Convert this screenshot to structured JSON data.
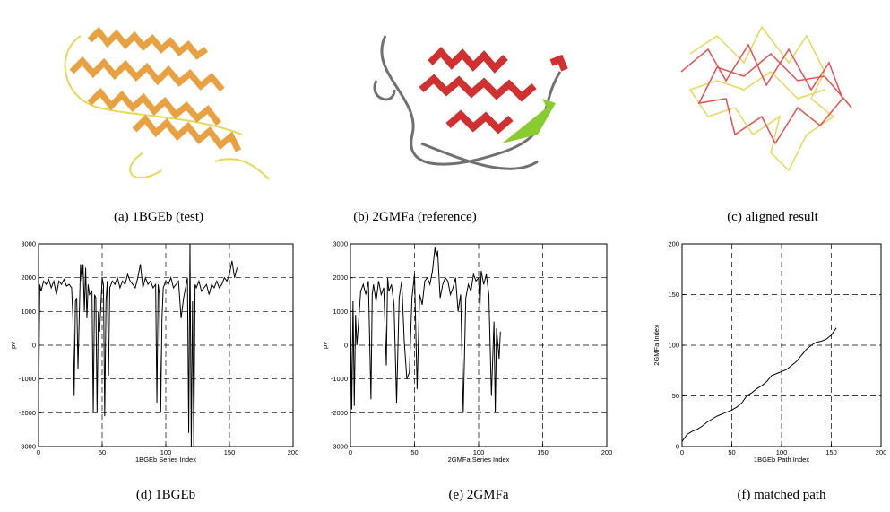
{
  "images": [
    {
      "caption": "(a) 1BGEb (test)"
    },
    {
      "caption": "(b) 2GMFa (reference)"
    },
    {
      "caption": "(c) aligned result"
    }
  ],
  "chart_data": [
    {
      "type": "line",
      "caption": "(d) 1BGEb",
      "x_label": "1BGEb Series Index",
      "y_label": "pv",
      "xlim": [
        0,
        200
      ],
      "xticks": [
        0,
        50,
        100,
        150,
        200
      ],
      "ylim": [
        -3000,
        3000
      ],
      "yticks": [
        -3000,
        -2000,
        -1000,
        0,
        1000,
        2000,
        3000
      ],
      "grid": true,
      "x": [
        0,
        1,
        2,
        4,
        6,
        8,
        10,
        12,
        14,
        16,
        18,
        20,
        22,
        24,
        26,
        27,
        28,
        29,
        30,
        31,
        33,
        34,
        35,
        36,
        37,
        38,
        39,
        40,
        42,
        43,
        44,
        45,
        46,
        47,
        48,
        50,
        51,
        52,
        53,
        54,
        55,
        56,
        58,
        60,
        62,
        64,
        66,
        68,
        70,
        72,
        74,
        76,
        78,
        80,
        82,
        84,
        86,
        88,
        90,
        92,
        93,
        94,
        95,
        96,
        97,
        98,
        100,
        102,
        104,
        106,
        108,
        110,
        112,
        114,
        116,
        117,
        118,
        119,
        120,
        121,
        122,
        123,
        124,
        126,
        128,
        130,
        132,
        134,
        136,
        138,
        140,
        142,
        144,
        146,
        148,
        150,
        152,
        154,
        156
      ],
      "series": [
        {
          "color": "#000000",
          "values": [
            -1900,
            1800,
            1600,
            1900,
            1800,
            1950,
            1700,
            1900,
            1500,
            1900,
            1800,
            1950,
            1750,
            1800,
            1700,
            800,
            -1500,
            1300,
            1400,
            -700,
            2400,
            1900,
            2400,
            1000,
            2300,
            800,
            1800,
            1500,
            1600,
            -2000,
            1500,
            1400,
            -2000,
            1000,
            400,
            2000,
            1800,
            -2100,
            1300,
            1900,
            -900,
            1700,
            1900,
            1800,
            2000,
            1700,
            1900,
            1800,
            2100,
            1900,
            1800,
            1700,
            2000,
            2400,
            1700,
            2000,
            1800,
            1900,
            1700,
            1800,
            -1700,
            1800,
            1500,
            -2000,
            800,
            1700,
            1900,
            1800,
            2000,
            1700,
            1800,
            1900,
            800,
            1400,
            1800,
            2000,
            -2600,
            3000,
            -3000,
            1300,
            -3000,
            1800,
            1700,
            1900,
            1600,
            1700,
            1800,
            1500,
            1800,
            1700,
            1900,
            1700,
            1800,
            2000,
            1900,
            2100,
            2500,
            2000,
            2300
          ]
        }
      ]
    },
    {
      "type": "line",
      "caption": "(e) 2GMFa",
      "x_label": "2GMFa Series Index",
      "y_label": "pv",
      "xlim": [
        0,
        200
      ],
      "xticks": [
        0,
        50,
        100,
        150,
        200
      ],
      "ylim": [
        -3000,
        3000
      ],
      "yticks": [
        -3000,
        -2000,
        -1000,
        0,
        1000,
        2000,
        3000
      ],
      "grid": true,
      "x": [
        0,
        1,
        2,
        3,
        4,
        5,
        6,
        8,
        10,
        12,
        14,
        16,
        17,
        18,
        20,
        22,
        24,
        26,
        28,
        29,
        30,
        32,
        34,
        36,
        38,
        40,
        42,
        44,
        46,
        48,
        50,
        52,
        54,
        56,
        58,
        60,
        62,
        64,
        66,
        67,
        68,
        70,
        72,
        74,
        76,
        78,
        80,
        82,
        84,
        86,
        88,
        90,
        92,
        94,
        96,
        98,
        100,
        101,
        102,
        104,
        106,
        108,
        110,
        112,
        113,
        114,
        116,
        117
      ],
      "series": [
        {
          "color": "#000000",
          "values": [
            1000,
            -1900,
            1300,
            -1800,
            900,
            0,
            500,
            1600,
            1800,
            1500,
            1900,
            -1600,
            1500,
            1800,
            1300,
            1900,
            1500,
            1700,
            -600,
            2000,
            1600,
            1800,
            1200,
            -1700,
            1400,
            1900,
            100,
            -1000,
            -800,
            1400,
            2100,
            -1300,
            1500,
            1200,
            1900,
            2000,
            1800,
            2200,
            2900,
            2600,
            2800,
            1400,
            1800,
            2000,
            1900,
            1500,
            1700,
            2000,
            1000,
            1500,
            -2000,
            1400,
            1800,
            1600,
            2100,
            1900,
            2000,
            1100,
            2200,
            1800,
            2100,
            1500,
            -1500,
            700,
            -2000,
            500,
            -400,
            400
          ]
        }
      ]
    },
    {
      "type": "line",
      "caption": "(f) matched path",
      "x_label": "1BGEb Path Index",
      "y_label": "2GMFa Index",
      "xlim": [
        0,
        200
      ],
      "xticks": [
        0,
        50,
        100,
        150,
        200
      ],
      "ylim": [
        0,
        200
      ],
      "yticks": [
        0,
        50,
        100,
        150,
        200
      ],
      "grid": true,
      "x": [
        0,
        5,
        10,
        15,
        20,
        25,
        30,
        35,
        40,
        45,
        50,
        55,
        60,
        65,
        70,
        75,
        80,
        85,
        90,
        95,
        100,
        105,
        110,
        115,
        120,
        125,
        130,
        135,
        140,
        145,
        150,
        155
      ],
      "series": [
        {
          "color": "#000000",
          "values": [
            5,
            12,
            15,
            17,
            20,
            24,
            27,
            30,
            32,
            34,
            36,
            39,
            43,
            50,
            53,
            57,
            60,
            64,
            70,
            72,
            74,
            76,
            80,
            84,
            90,
            96,
            100,
            103,
            104,
            106,
            110,
            117
          ]
        }
      ]
    }
  ]
}
